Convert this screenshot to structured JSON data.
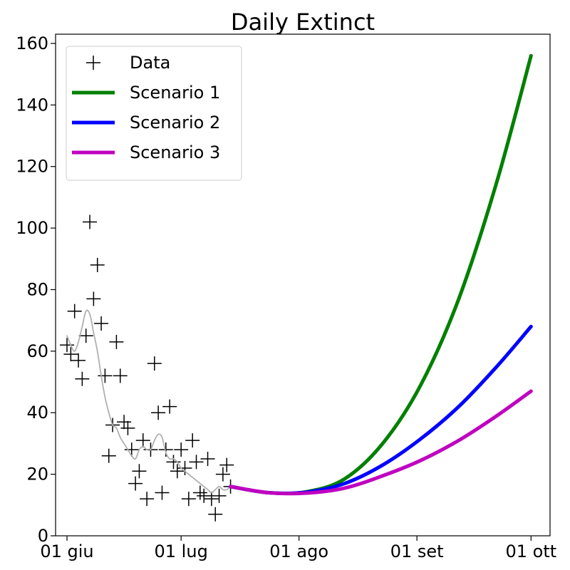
{
  "chart_data": {
    "type": "line",
    "title": "Daily Extinct",
    "xlabel": "",
    "ylabel": "",
    "x_range": [
      "2020-05-29",
      "2020-10-06"
    ],
    "ylim": [
      0,
      163
    ],
    "x_ticks": [
      {
        "date": "2020-06-01",
        "label": "01 giu"
      },
      {
        "date": "2020-07-01",
        "label": "01 lug"
      },
      {
        "date": "2020-08-01",
        "label": "01 ago"
      },
      {
        "date": "2020-09-01",
        "label": "01 set"
      },
      {
        "date": "2020-10-01",
        "label": "01 ott"
      }
    ],
    "y_ticks": [
      0,
      20,
      40,
      60,
      80,
      100,
      120,
      140,
      160
    ],
    "grid": false,
    "legend": {
      "placement": "top-left"
    },
    "series": [
      {
        "name": "Data",
        "kind": "scatter",
        "marker": "+",
        "color": "#000000",
        "x": [
          "2020-06-01",
          "2020-06-02",
          "2020-06-03",
          "2020-06-04",
          "2020-06-05",
          "2020-06-06",
          "2020-06-07",
          "2020-06-08",
          "2020-06-09",
          "2020-06-10",
          "2020-06-11",
          "2020-06-12",
          "2020-06-13",
          "2020-06-14",
          "2020-06-15",
          "2020-06-16",
          "2020-06-17",
          "2020-06-18",
          "2020-06-19",
          "2020-06-20",
          "2020-06-21",
          "2020-06-22",
          "2020-06-23",
          "2020-06-24",
          "2020-06-25",
          "2020-06-26",
          "2020-06-27",
          "2020-06-28",
          "2020-06-29",
          "2020-06-30",
          "2020-07-01",
          "2020-07-02",
          "2020-07-03",
          "2020-07-04",
          "2020-07-05",
          "2020-07-06",
          "2020-07-07",
          "2020-07-08",
          "2020-07-09",
          "2020-07-10",
          "2020-07-11",
          "2020-07-12",
          "2020-07-13",
          "2020-07-14"
        ],
        "y": [
          62,
          59,
          73,
          57,
          51,
          65,
          102,
          77,
          88,
          69,
          52,
          26,
          36,
          63,
          52,
          37,
          35,
          28,
          17,
          21,
          31,
          12,
          28,
          56,
          40,
          14,
          28,
          42,
          24,
          21,
          28,
          22,
          12,
          31,
          24,
          14,
          13,
          25,
          12,
          7,
          13,
          20,
          23,
          16
        ]
      },
      {
        "name": "",
        "kind": "line",
        "color": "#b0b0b0",
        "x": [
          "2020-06-01",
          "2020-06-02",
          "2020-06-03",
          "2020-06-04",
          "2020-06-05",
          "2020-06-06",
          "2020-06-07",
          "2020-06-08",
          "2020-06-09",
          "2020-06-10",
          "2020-06-11",
          "2020-06-12",
          "2020-06-13",
          "2020-06-14",
          "2020-06-15",
          "2020-06-16",
          "2020-06-17",
          "2020-06-18",
          "2020-06-19",
          "2020-06-20",
          "2020-06-21",
          "2020-06-22",
          "2020-06-23",
          "2020-06-24",
          "2020-06-25",
          "2020-06-26",
          "2020-06-27",
          "2020-06-28",
          "2020-06-29",
          "2020-06-30",
          "2020-07-01",
          "2020-07-02",
          "2020-07-03",
          "2020-07-04",
          "2020-07-05",
          "2020-07-06",
          "2020-07-07",
          "2020-07-08",
          "2020-07-09",
          "2020-07-10",
          "2020-07-11",
          "2020-07-12",
          "2020-07-13",
          "2020-07-14"
        ],
        "y": [
          65,
          62,
          60,
          63,
          68,
          73,
          72,
          66,
          60,
          52,
          45,
          40,
          36,
          35,
          32,
          30,
          28,
          26,
          25,
          28,
          29,
          28,
          28,
          31,
          33,
          32,
          27,
          25,
          25,
          24,
          22,
          21,
          20,
          19,
          18,
          17,
          16,
          15,
          14,
          15,
          16,
          15,
          15,
          16
        ]
      },
      {
        "name": "Scenario 1",
        "kind": "line",
        "color": "#008000",
        "x": [
          "2020-07-14",
          "2020-07-24",
          "2020-08-03",
          "2020-08-13",
          "2020-08-23",
          "2020-09-02",
          "2020-09-12",
          "2020-09-22",
          "2020-10-01"
        ],
        "y": [
          16,
          14,
          14.3,
          18.5,
          30,
          49,
          77,
          115,
          156
        ]
      },
      {
        "name": "Scenario 2",
        "kind": "line",
        "color": "#0000ff",
        "x": [
          "2020-07-14",
          "2020-07-24",
          "2020-08-03",
          "2020-08-13",
          "2020-08-23",
          "2020-09-02",
          "2020-09-12",
          "2020-09-22",
          "2020-10-01"
        ],
        "y": [
          16,
          14,
          14.2,
          17,
          23,
          31.5,
          42,
          55,
          68
        ]
      },
      {
        "name": "Scenario 3",
        "kind": "line",
        "color": "#c000c0",
        "x": [
          "2020-07-14",
          "2020-07-24",
          "2020-08-03",
          "2020-08-13",
          "2020-08-23",
          "2020-09-02",
          "2020-09-12",
          "2020-09-22",
          "2020-10-01"
        ],
        "y": [
          16,
          14,
          13.9,
          15.5,
          19.5,
          24.5,
          31,
          39,
          47
        ]
      }
    ]
  }
}
